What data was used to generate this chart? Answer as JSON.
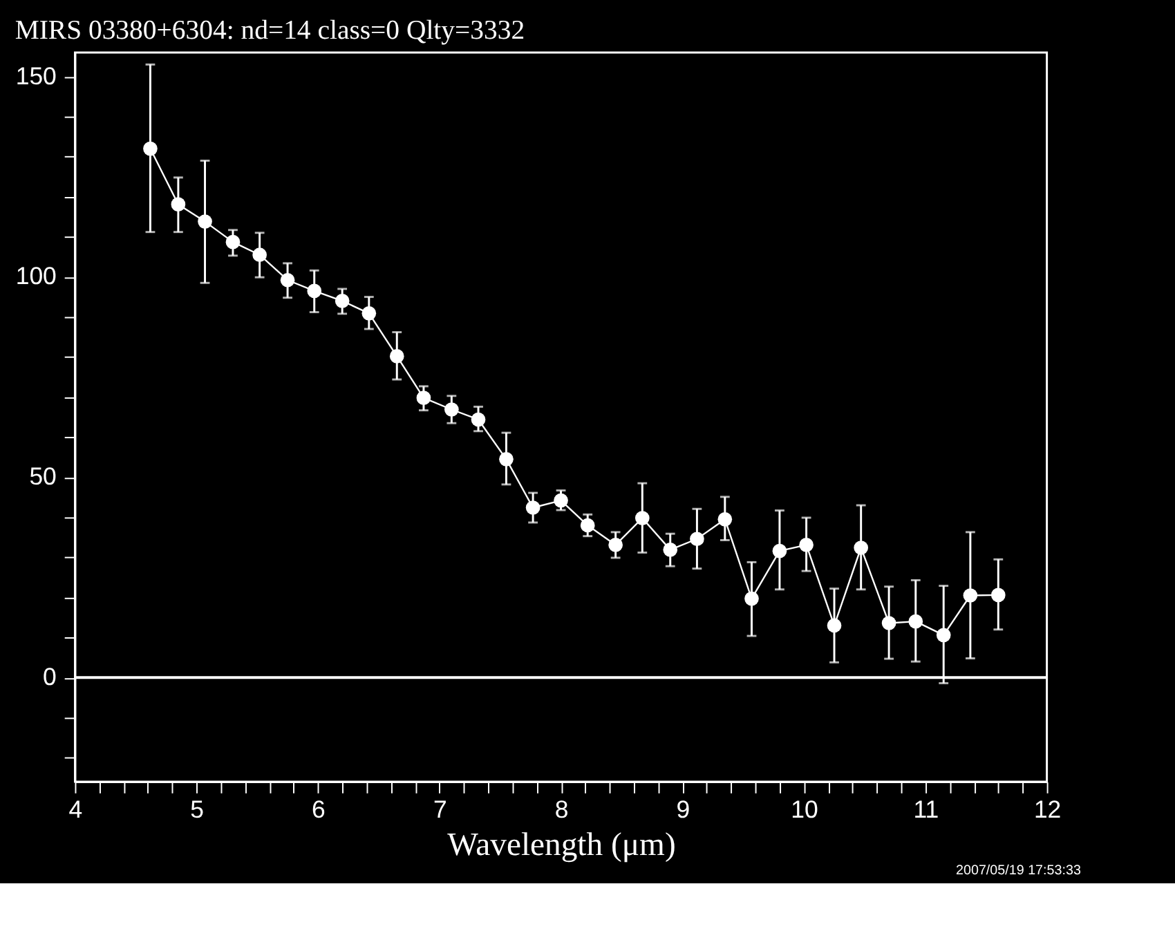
{
  "chart_data": {
    "type": "line",
    "title": "MIRS 03380+6304:     nd=14    class=0    Qlty=3332",
    "xlabel": "Wavelength (μm)",
    "x": [
      4.62,
      4.85,
      5.07,
      5.3,
      5.52,
      5.75,
      5.97,
      6.2,
      6.42,
      6.65,
      6.87,
      7.1,
      7.32,
      7.55,
      7.77,
      8.0,
      8.22,
      8.45,
      8.67,
      8.9,
      9.12,
      9.35,
      9.57,
      9.8,
      10.02,
      10.25,
      10.47,
      10.7,
      10.92,
      11.15,
      11.37,
      11.6
    ],
    "series": [
      {
        "color": "#ffffff",
        "values": [
          132.0,
          118.1,
          113.8,
          108.7,
          105.5,
          99.2,
          96.5,
          94.0,
          90.9,
          80.2,
          69.8,
          66.9,
          64.4,
          54.5,
          42.4,
          44.2,
          38.0,
          33.1,
          39.8,
          31.9,
          34.6,
          39.5,
          19.7,
          31.6,
          33.1,
          13.0,
          32.4,
          13.6,
          14.0,
          10.6,
          20.5,
          20.6
        ],
        "errors": [
          [
            111.2,
            153.0
          ],
          [
            111.2,
            124.8
          ],
          [
            98.5,
            129.0
          ],
          [
            105.3,
            111.7
          ],
          [
            99.9,
            111.0
          ],
          [
            94.8,
            103.4
          ],
          [
            91.2,
            101.6
          ],
          [
            90.8,
            97.0
          ],
          [
            87.0,
            95.0
          ],
          [
            74.4,
            86.2
          ],
          [
            66.7,
            72.7
          ],
          [
            63.5,
            70.3
          ],
          [
            61.5,
            67.6
          ],
          [
            48.2,
            61.1
          ],
          [
            38.7,
            46.1
          ],
          [
            41.8,
            46.7
          ],
          [
            35.3,
            40.7
          ],
          [
            29.9,
            36.3
          ],
          [
            31.2,
            48.5
          ],
          [
            27.8,
            35.9
          ],
          [
            27.2,
            42.1
          ],
          [
            34.3,
            45.1
          ],
          [
            10.4,
            28.8
          ],
          [
            22.0,
            41.7
          ],
          [
            26.6,
            39.9
          ],
          [
            3.8,
            22.2
          ],
          [
            22.0,
            43.0
          ],
          [
            4.7,
            22.7
          ],
          [
            4.0,
            24.3
          ],
          [
            -1.4,
            22.9
          ],
          [
            4.8,
            36.3
          ],
          [
            12.0,
            29.5
          ]
        ]
      }
    ],
    "xlim": [
      4,
      12
    ],
    "ylim": [
      -26,
      156
    ],
    "xticks": [
      4,
      {
        "value": 4.2,
        "label": null
      },
      {
        "value": 4.4,
        "label": null
      },
      {
        "value": 4.6,
        "label": null
      },
      {
        "value": 4.8,
        "label": null
      },
      5,
      {
        "value": 5.2,
        "label": null
      },
      {
        "value": 5.4,
        "label": null
      },
      {
        "value": 5.6,
        "label": null
      },
      {
        "value": 5.8,
        "label": null
      },
      6,
      {
        "value": 6.2,
        "label": null
      },
      {
        "value": 6.4,
        "label": null
      },
      {
        "value": 6.6,
        "label": null
      },
      {
        "value": 6.8,
        "label": null
      },
      7,
      {
        "value": 7.2,
        "label": null
      },
      {
        "value": 7.4,
        "label": null
      },
      {
        "value": 7.6,
        "label": null
      },
      {
        "value": 7.8,
        "label": null
      },
      8,
      {
        "value": 8.2,
        "label": null
      },
      {
        "value": 8.4,
        "label": null
      },
      {
        "value": 8.6,
        "label": null
      },
      {
        "value": 8.8,
        "label": null
      },
      9,
      {
        "value": 9.2,
        "label": null
      },
      {
        "value": 9.4,
        "label": null
      },
      {
        "value": 9.6,
        "label": null
      },
      {
        "value": 9.8,
        "label": null
      },
      10,
      {
        "value": 10.2,
        "label": null
      },
      {
        "value": 10.4,
        "label": null
      },
      {
        "value": 10.6,
        "label": null
      },
      {
        "value": 10.8,
        "label": null
      },
      11,
      {
        "value": 11.2,
        "label": null
      },
      {
        "value": 11.4,
        "label": null
      },
      {
        "value": 11.6,
        "label": null
      },
      {
        "value": 11.8,
        "label": null
      },
      12
    ],
    "yticks": [
      {
        "value": -20,
        "label": null
      },
      {
        "value": -10,
        "label": null
      },
      0,
      {
        "value": 10,
        "label": null
      },
      {
        "value": 20,
        "label": null
      },
      {
        "value": 30,
        "label": null
      },
      {
        "value": 40,
        "label": null
      },
      50,
      {
        "value": 60,
        "label": null
      },
      {
        "value": 70,
        "label": null
      },
      {
        "value": 80,
        "label": null
      },
      {
        "value": 90,
        "label": null
      },
      100,
      {
        "value": 110,
        "label": null
      },
      {
        "value": 120,
        "label": null
      },
      {
        "value": 130,
        "label": null
      },
      {
        "value": 140,
        "label": null
      },
      150
    ],
    "ref_lines": [
      {
        "axis": "y",
        "value": 0,
        "color": "#ffffff"
      }
    ],
    "marker": "circle",
    "grid": false,
    "annotations": [
      "2007/05/19 17:53:33"
    ]
  }
}
